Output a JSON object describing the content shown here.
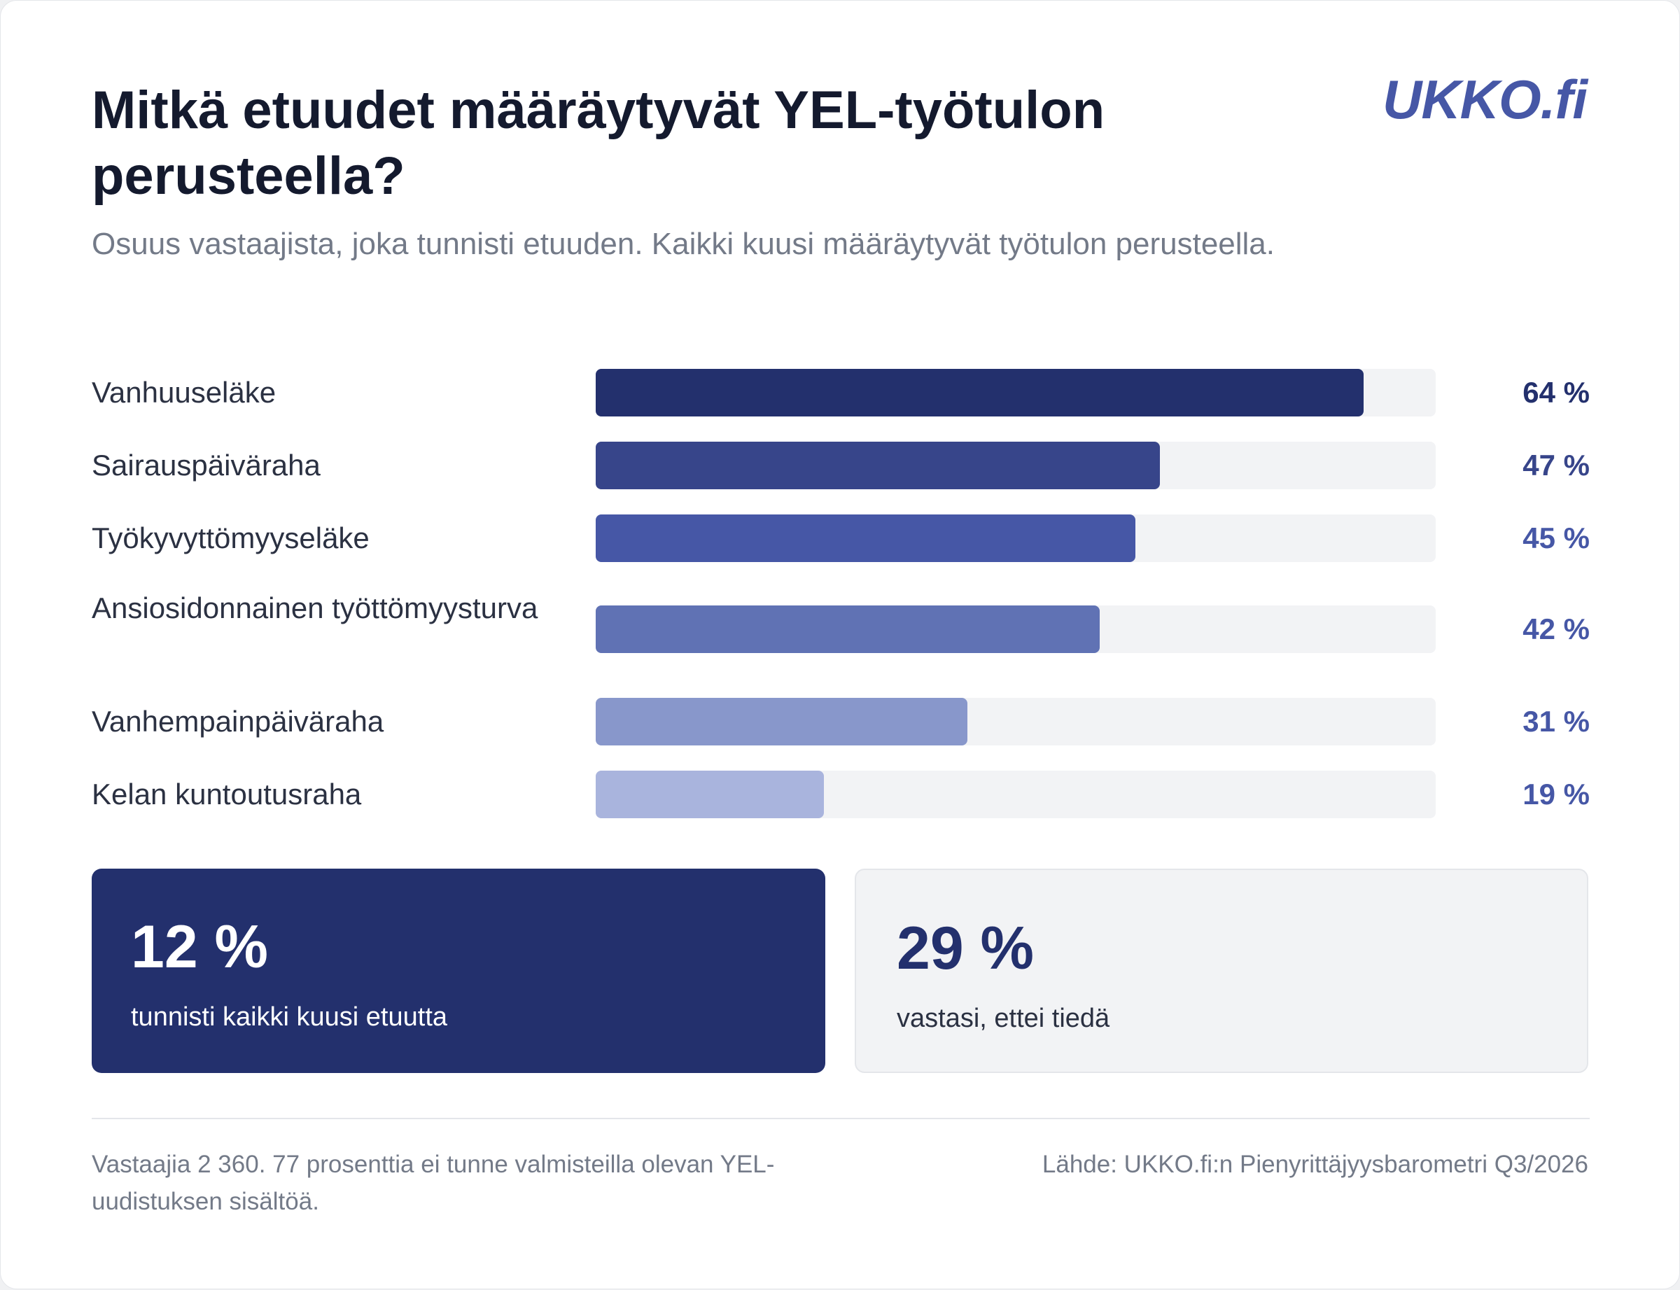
{
  "header": {
    "title": "Mitkä etuudet määräytyvät YEL-työtulon perusteella?",
    "subtitle": "Osuus vastaajista, joka tunnisti etuuden. Kaikki kuusi määräytyvät työtulon perusteella.",
    "logo": "UKKO.fi"
  },
  "chart_data": {
    "type": "bar",
    "orientation": "horizontal",
    "categories": [
      "Vanhuuseläke",
      "Sairauspäiväraha",
      "Työkyvyttömyyseläke",
      "Ansiosidonnainen työttömyysturva",
      "Vanhempainpäiväraha",
      "Kelan kuntoutusraha"
    ],
    "values": [
      64,
      47,
      45,
      42,
      31,
      19
    ],
    "value_labels": [
      "64 %",
      "47 %",
      "45 %",
      "42 %",
      "31 %",
      "19 %"
    ],
    "unit": "%",
    "xlim": [
      0,
      70
    ],
    "bar_colors": [
      "#23306d",
      "#37458a",
      "#4657a6",
      "#6072b4",
      "#8897cb",
      "#a9b4dd"
    ],
    "label_colors": [
      "#23306d",
      "#37458a",
      "#4657a6",
      "#4657a6",
      "#4657a6",
      "#4657a6"
    ],
    "track_color": "#f2f3f5",
    "grid": false,
    "legend": "none"
  },
  "stats": {
    "all_six": {
      "value": "12 %",
      "text": "tunnisti kaikki kuusi etuutta"
    },
    "dont_know": {
      "value": "29 %",
      "text": "vastasi, ettei tiedä"
    }
  },
  "footer": {
    "note": "Vastaajia 2 360. 77 prosenttia ei tunne valmisteilla olevan YEL-uudistuksen sisältöä.",
    "source": "Lähde: UKKO.fi:n Pienyrittäjyysbarometri Q3/2026"
  }
}
